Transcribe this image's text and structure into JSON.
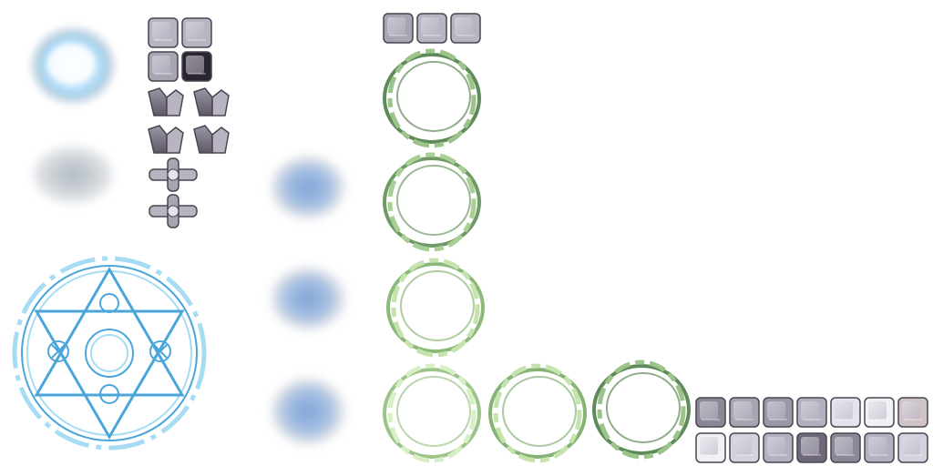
{
  "sheet": {
    "background": "#ffffff",
    "palette": {
      "frost_bright": "#dff3ff",
      "frost_mid": "#9fd3f5",
      "frost_core": "#ffffff",
      "mist_grey": "#9aa3ad",
      "mist_blue": "#6f95c9",
      "mist_blue_light": "#a9c1e3",
      "rune_blue": "#4aa6d9",
      "rune_light": "#a8dcf5",
      "ring_green_dark": "#5f8a5a",
      "ring_green_mid": "#9cc48a",
      "ring_green_light": "#d7efc4",
      "block_light": "#d6d2dd",
      "block_mid": "#9c97a6",
      "block_dark": "#4a4550",
      "block_black": "#1e1a22",
      "block_white": "#f1f0f4"
    },
    "sprites": [
      {
        "name": "frost-burst-cloud",
        "icon": "glowing-frost-cloud-icon"
      },
      {
        "name": "grey-mist-cloud",
        "icon": "grey-mist-icon"
      },
      {
        "name": "blue-mist-cloud",
        "icon": "blue-mist-icon",
        "count": 3
      },
      {
        "name": "hexagram-rune-circle",
        "icon": "magic-circle-icon"
      },
      {
        "name": "stone-cube-tiles",
        "icon": "stone-cube-icon"
      },
      {
        "name": "stone-pillar-pieces",
        "icon": "stone-pillar-icon"
      },
      {
        "name": "cross-peg-pieces",
        "icon": "cross-peg-icon"
      },
      {
        "name": "vine-ring-frames",
        "icon": "vine-ring-icon",
        "count": 6
      },
      {
        "name": "ice-cube-tiles",
        "icon": "ice-cube-icon",
        "count": 14
      }
    ]
  }
}
